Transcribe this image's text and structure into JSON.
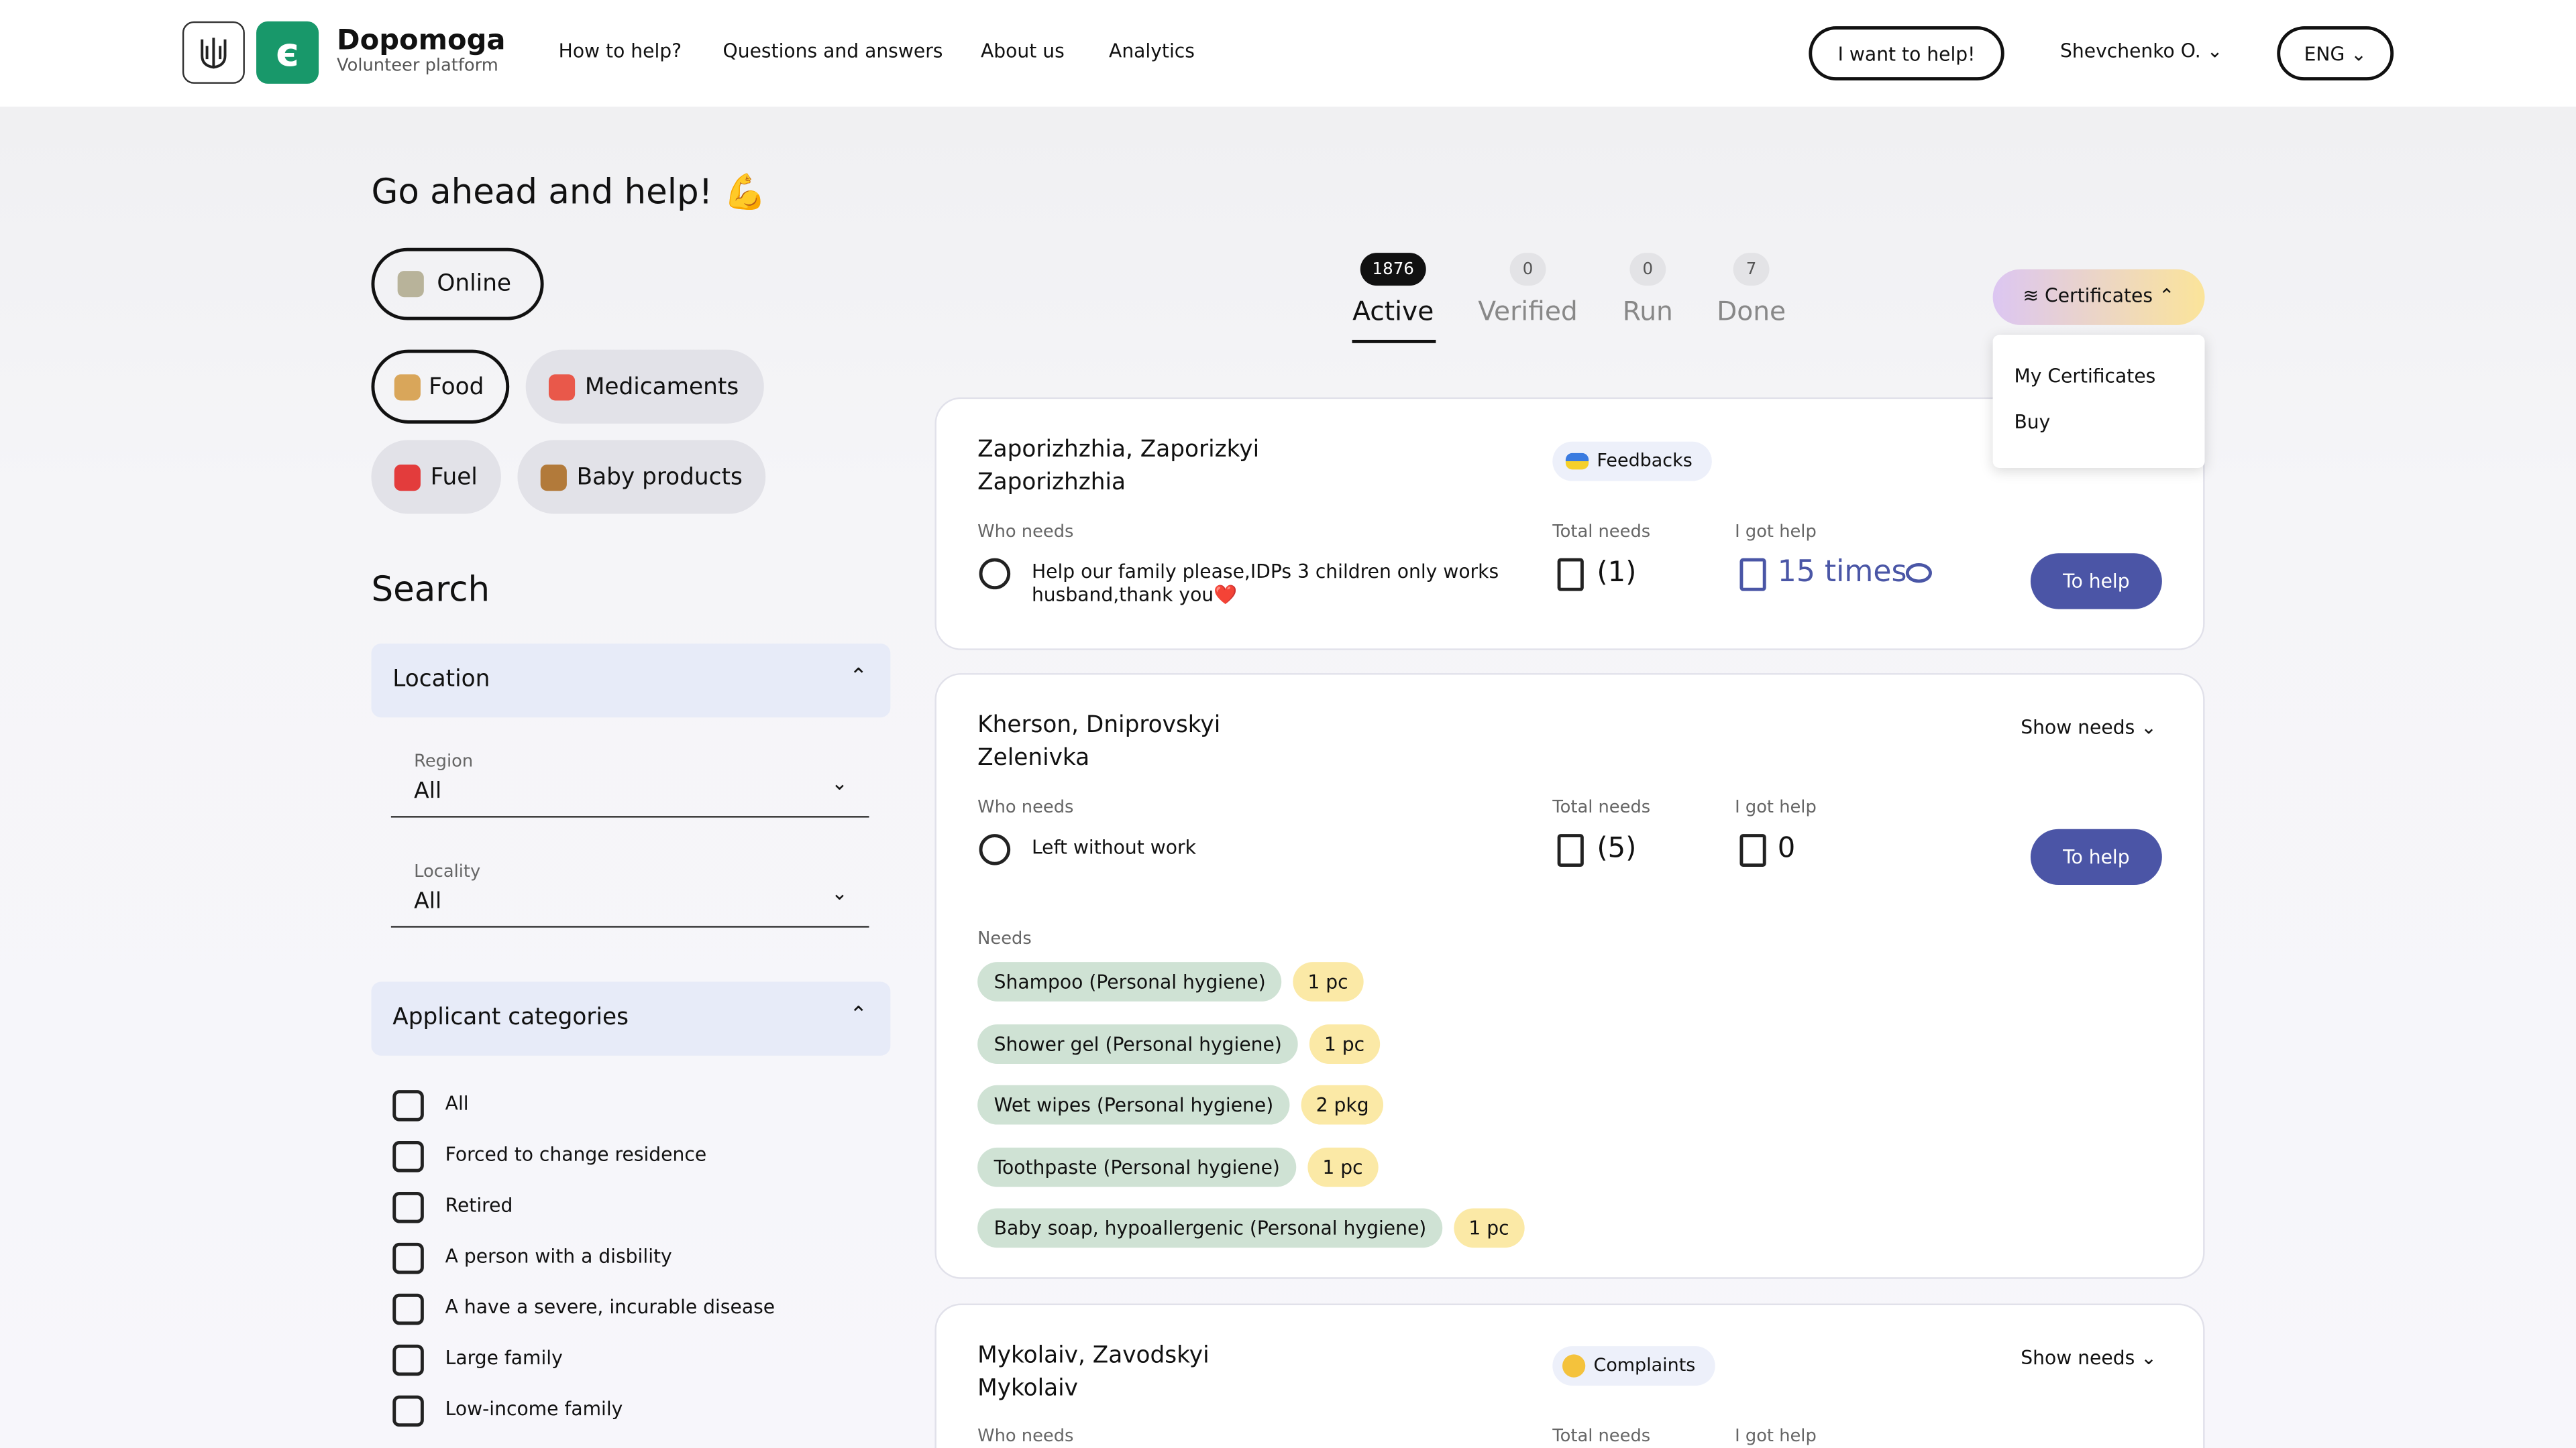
{
  "header": {
    "brand": "Dopomoga",
    "tagline": "Volunteer platform",
    "nav": [
      "How to help?",
      "Questions and answers",
      "About us",
      "Analytics"
    ],
    "cta": "I want to help!",
    "user": "Shevchenko O.",
    "language": "ENG"
  },
  "sidebar": {
    "title": "Go ahead and help!",
    "help_types": [
      "Online",
      "Food",
      "Medicaments",
      "Fuel",
      "Baby products"
    ],
    "search_title": "Search",
    "location": {
      "title": "Location",
      "fields": [
        {
          "label": "Region",
          "value": "All"
        },
        {
          "label": "Locality",
          "value": "All"
        }
      ]
    },
    "applicant_categories": {
      "title": "Applicant categories",
      "options": [
        "All",
        "Forced to change residence",
        "Retired",
        "A person with a disbility",
        "A have a severe, incurable disease",
        "Large family",
        "Low-income family"
      ]
    }
  },
  "tabs": [
    {
      "label": "Active",
      "count": "1876"
    },
    {
      "label": "Verified",
      "count": "0"
    },
    {
      "label": "Run",
      "count": "0"
    },
    {
      "label": "Done",
      "count": "7"
    }
  ],
  "certificates": {
    "label": "Certificates",
    "menu": [
      "My Certificates",
      "Buy"
    ]
  },
  "requests": [
    {
      "location": "Zaporizhzhia, Zaporizkyi",
      "city": "Zaporizhzhia",
      "badge": "Feedbacks",
      "who_needs_label": "Who needs",
      "who_needs": "Help our family please,IDPs 3 children only works husband,thank you❤️",
      "total_needs_label": "Total needs",
      "total_needs": "(1)",
      "got_help_label": "I got help",
      "got_help": "15 times",
      "button": "To help"
    },
    {
      "location": "Kherson, Dniprovskyi",
      "city": "Zelenivka",
      "show_needs": "Show needs",
      "who_needs_label": "Who needs",
      "who_needs": "Left without work",
      "total_needs_label": "Total needs",
      "total_needs": "(5)",
      "got_help_label": "I got help",
      "got_help": "0",
      "button": "To help",
      "needs_label": "Needs",
      "needs": [
        {
          "item": "Shampoo (Personal hygiene)",
          "qty": "1 pc"
        },
        {
          "item": "Shower gel (Personal hygiene)",
          "qty": "1 pc"
        },
        {
          "item": "Wet wipes (Personal hygiene)",
          "qty": "2 pkg"
        },
        {
          "item": "Toothpaste (Personal hygiene)",
          "qty": "1 pc"
        },
        {
          "item": "Baby soap, hypoallergenic (Personal hygiene)",
          "qty": "1 pc"
        }
      ]
    },
    {
      "location": "Mykolaiv, Zavodskyi",
      "city": "Mykolaiv",
      "badge": "Complaints",
      "show_needs": "Show needs",
      "who_needs_label": "Who needs",
      "total_needs_label": "Total needs",
      "got_help_label": "I got help"
    }
  ]
}
